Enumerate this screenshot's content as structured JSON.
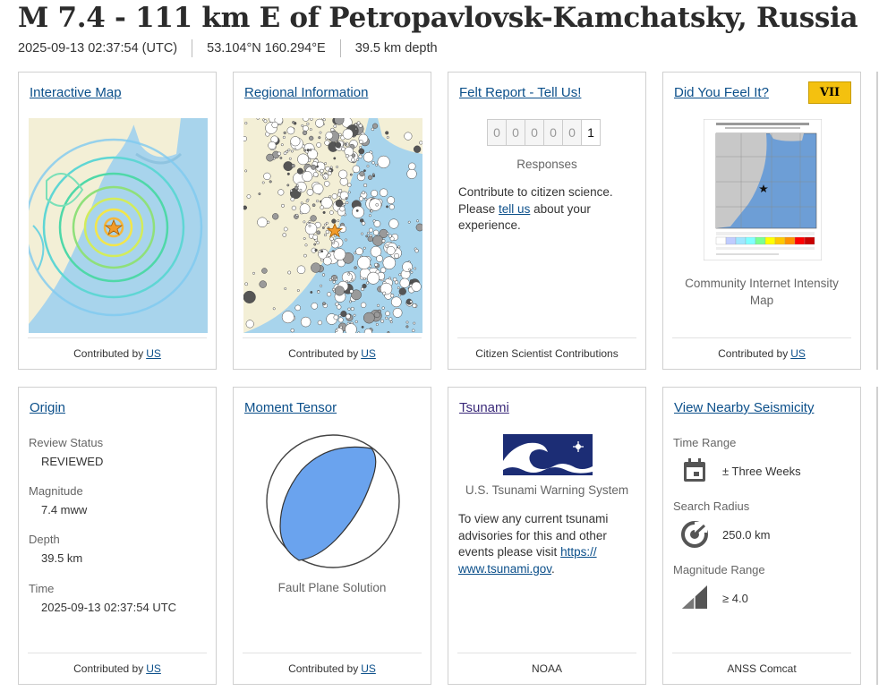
{
  "header": {
    "title": "M 7.4 - 111 km E of Petropavlovsk-Kamchatsky, Russia",
    "time": "2025-09-13 02:37:54 (UTC)",
    "location": "53.104°N 160.294°E",
    "depth": "39.5 km depth"
  },
  "cards": {
    "interactive_map": {
      "title": "Interactive Map",
      "footer_prefix": "Contributed by",
      "footer_link": "US"
    },
    "regional_info": {
      "title": "Regional Information",
      "footer_prefix": "Contributed by",
      "footer_link": "US"
    },
    "felt_report": {
      "title": "Felt Report - Tell Us!",
      "digits": [
        "0",
        "0",
        "0",
        "0",
        "0",
        "1"
      ],
      "responses_label": "Responses",
      "text_before": "Contribute to citizen science. Please",
      "link": "tell us",
      "text_after": "about your experience.",
      "footer": "Citizen Scientist Contributions"
    },
    "dyfi": {
      "title": "Did You Feel It?",
      "badge": "VII",
      "caption": "Community Internet Intensity Map",
      "footer_prefix": "Contributed by",
      "footer_link": "US"
    },
    "origin": {
      "title": "Origin",
      "rows": [
        {
          "label": "Review Status",
          "value": "REVIEWED"
        },
        {
          "label": "Magnitude",
          "value": "7.4 mww"
        },
        {
          "label": "Depth",
          "value": "39.5 km"
        },
        {
          "label": "Time",
          "value": "2025-09-13 02:37:54 UTC"
        }
      ],
      "footer_prefix": "Contributed by",
      "footer_link": "US"
    },
    "moment_tensor": {
      "title": "Moment Tensor",
      "caption": "Fault Plane Solution",
      "footer_prefix": "Contributed by",
      "footer_link": "US"
    },
    "tsunami": {
      "title": "Tsunami",
      "org": "U.S. Tsunami Warning System",
      "text": "To view any current tsunami advisories for this and other events please visit",
      "link": "https://www.tsunami.gov",
      "link_line1": "https://",
      "link_line2": "www.tsunami.gov",
      "footer": "NOAA"
    },
    "nearby": {
      "title": "View Nearby Seismicity",
      "rows": [
        {
          "label": "Time Range",
          "value": "± Three Weeks",
          "icon": "calendar-icon"
        },
        {
          "label": "Search Radius",
          "value": "250.0 km",
          "icon": "radius-target-icon"
        },
        {
          "label": "Magnitude Range",
          "value": "≥ 4.0",
          "icon": "magnitude-ramp-icon"
        }
      ],
      "footer": "ANSS Comcat"
    }
  },
  "colors": {
    "link": "#0b4f8a",
    "badge": "#f4c10f",
    "ocean": "#a8d4ec",
    "land": "#f3efd6",
    "beachball": "#6aa3ee"
  }
}
